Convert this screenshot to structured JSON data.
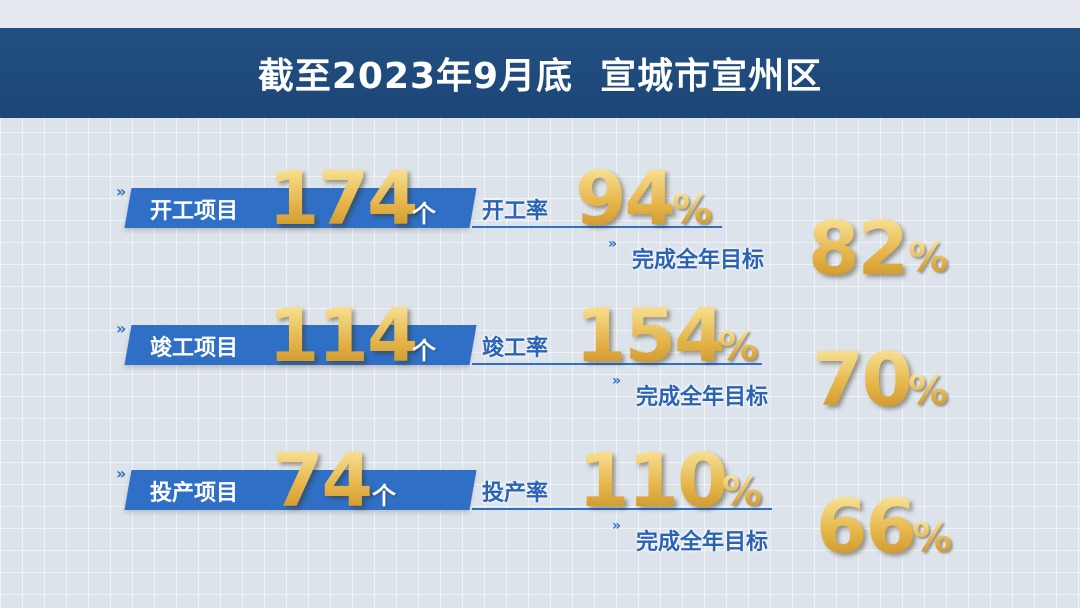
{
  "header": {
    "title": "截至2023年9月底  宣城市宣州区"
  },
  "rows": [
    {
      "label": "开工项目",
      "count": "174",
      "unit": "个",
      "rate_label": "开工率",
      "rate": "94",
      "target_label": "完成全年目标",
      "target": "82",
      "pct": "%"
    },
    {
      "label": "竣工项目",
      "count": "114",
      "unit": "个",
      "rate_label": "竣工率",
      "rate": "154",
      "target_label": "完成全年目标",
      "target": "70",
      "pct": "%"
    },
    {
      "label": "投产项目",
      "count": "74",
      "unit": "个",
      "rate_label": "投产率",
      "rate": "110",
      "target_label": "完成全年目标",
      "target": "66",
      "pct": "%"
    }
  ],
  "colors": {
    "header_bg": "#1f4a7c",
    "bar_blue": "#2f6fc6",
    "gold": "#e6b64a"
  }
}
